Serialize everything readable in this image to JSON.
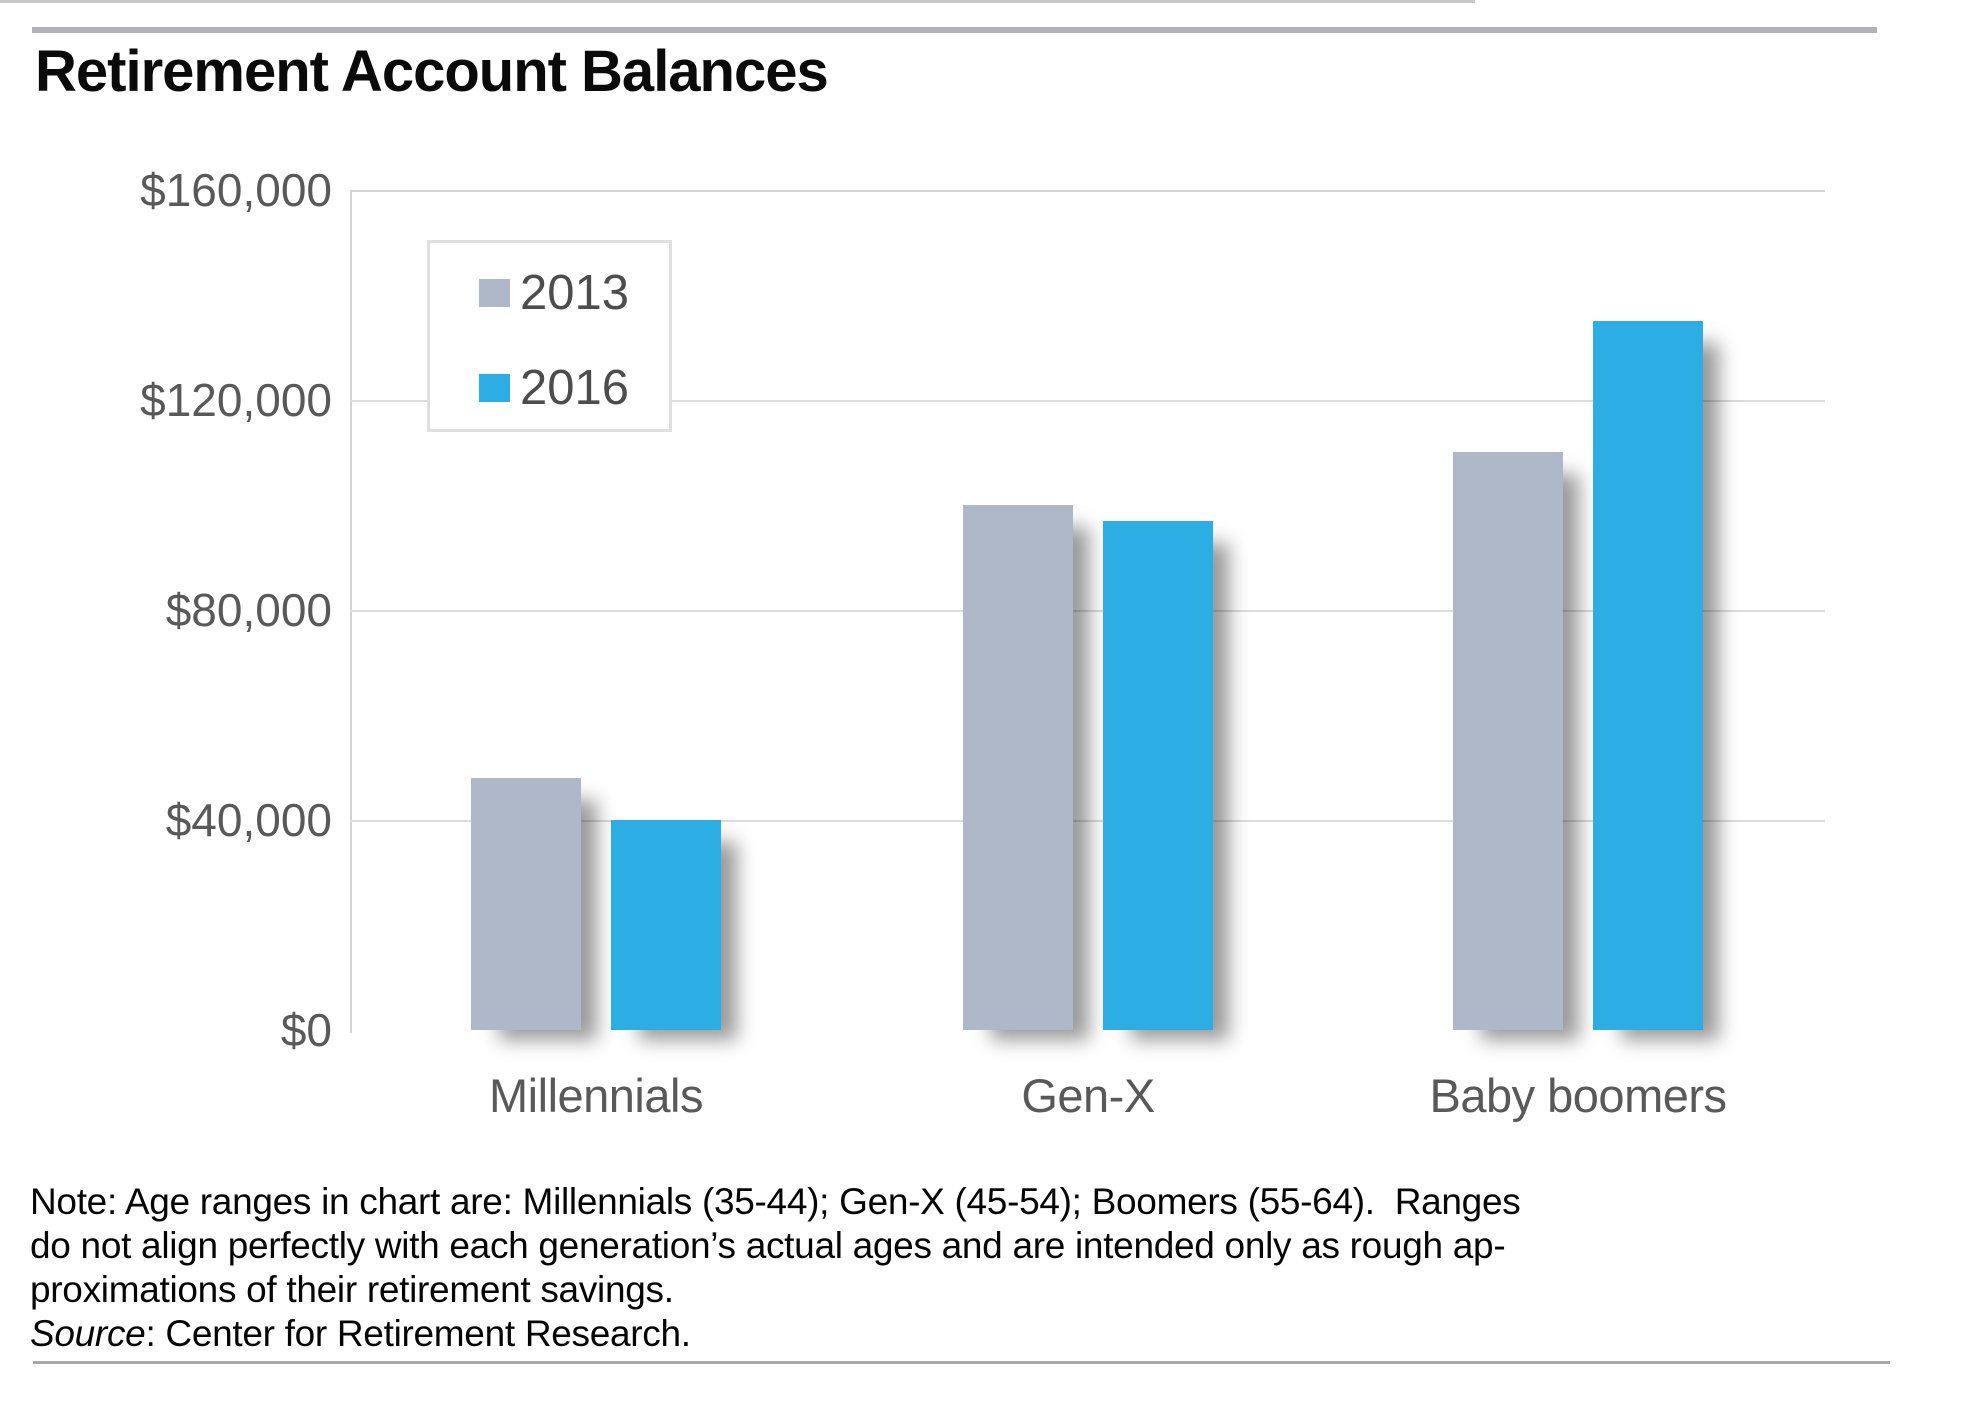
{
  "title": "Retirement Account Balances",
  "chart_data": {
    "type": "bar",
    "categories": [
      "Millennials",
      "Gen-X",
      "Baby boomers"
    ],
    "series": [
      {
        "name": "2013",
        "color": "#aeb8c8",
        "values": [
          48000,
          100000,
          110000
        ]
      },
      {
        "name": "2016",
        "color": "#2cade4",
        "values": [
          40000,
          97000,
          135000
        ]
      }
    ],
    "y_ticks": [
      {
        "value": 160000,
        "label": "$160,000"
      },
      {
        "value": 120000,
        "label": "$120,000"
      },
      {
        "value": 80000,
        "label": "$80,000"
      },
      {
        "value": 40000,
        "label": "$40,000"
      },
      {
        "value": 0,
        "label": "$0"
      }
    ],
    "ylim": [
      0,
      160000
    ],
    "grid": true,
    "legend_position": "upper-left-inside",
    "note_age_ranges": {
      "Millennials": "35-44",
      "Gen-X": "45-54",
      "Boomers": "55-64"
    }
  },
  "note": {
    "lines": [
      "Note: Age ranges in chart are: Millennials (35-44); Gen-X (45-54); Boomers (55-64).  Ranges",
      "do not align perfectly with each generation’s actual ages and are intended only as rough ap-",
      "proximations of their retirement savings."
    ],
    "source_label": "Source",
    "source_rest": ": Center for Retirement Research."
  },
  "colors": {
    "series_2013": "#aeb8c8",
    "series_2016": "#2cade4",
    "gridline": "#dcdcdc",
    "axis_line": "#d4d4d4",
    "baseline": "#c8c8c8",
    "tick_text": "#595959",
    "legend_text": "#4d4d4d",
    "title_text": "#0a0a0a",
    "divider": "#b2b2b5"
  }
}
